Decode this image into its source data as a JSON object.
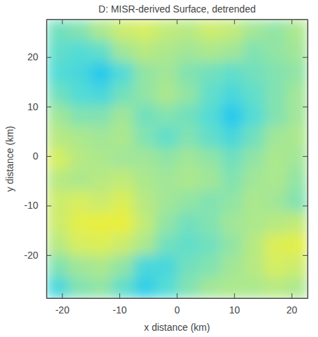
{
  "chart_data": {
    "type": "heatmap",
    "title": "D: MISR-derived Surface, detrended",
    "x_label": "x distance (km)",
    "y_label": "y distance (km)",
    "xlim": [
      -22.7,
      22.8
    ],
    "ylim": [
      -28.7,
      27.6
    ],
    "xticks": [
      -20,
      -10,
      0,
      10,
      20
    ],
    "yticks": [
      -20,
      -10,
      0,
      10,
      20
    ],
    "zlim": [
      -1,
      1
    ],
    "x_edges": [
      -22.7,
      -18.9,
      -15.1,
      -11.3,
      -7.5,
      -3.7,
      0.1,
      3.9,
      7.7,
      11.5,
      15.3,
      19.1,
      22.8
    ],
    "y_edges": [
      27.6,
      23.3,
      19.0,
      14.6,
      10.3,
      6.0,
      1.6,
      -2.7,
      -7.0,
      -11.4,
      -15.7,
      -20.0,
      -24.4,
      -28.7
    ],
    "values": [
      [
        -0.3,
        -0.2,
        0.1,
        0.4,
        0.5,
        0.3,
        0.2,
        0.4,
        0.3,
        0.0,
        -0.1,
        0.1
      ],
      [
        -0.4,
        -0.5,
        -0.4,
        0.0,
        0.2,
        0.1,
        0.0,
        0.1,
        0.0,
        -0.2,
        -0.1,
        0.0
      ],
      [
        -0.5,
        -0.6,
        -0.9,
        -0.5,
        -0.1,
        0.0,
        -0.2,
        -0.3,
        -0.4,
        -0.3,
        -0.2,
        -0.1
      ],
      [
        -0.3,
        -0.5,
        -0.6,
        -0.3,
        -0.1,
        0.1,
        -0.1,
        -0.4,
        -0.6,
        -0.4,
        -0.2,
        0.0
      ],
      [
        0.0,
        -0.2,
        -0.2,
        0.0,
        -0.3,
        -0.2,
        -0.3,
        -0.5,
        -0.9,
        -0.5,
        -0.2,
        0.0
      ],
      [
        0.2,
        0.1,
        0.0,
        0.1,
        -0.2,
        -0.4,
        -0.2,
        -0.4,
        -0.6,
        -0.3,
        0.0,
        0.1
      ],
      [
        0.5,
        0.2,
        0.1,
        0.0,
        0.0,
        -0.1,
        0.0,
        -0.1,
        -0.3,
        -0.1,
        0.1,
        0.0
      ],
      [
        0.2,
        0.1,
        0.2,
        0.3,
        0.1,
        0.0,
        0.1,
        0.0,
        -0.2,
        0.0,
        0.1,
        -0.1
      ],
      [
        0.4,
        0.5,
        0.4,
        0.6,
        0.2,
        0.0,
        -0.1,
        -0.2,
        -0.1,
        0.1,
        0.0,
        -0.2
      ],
      [
        0.4,
        0.7,
        0.8,
        0.8,
        0.3,
        -0.1,
        -0.3,
        -0.2,
        0.0,
        0.1,
        0.2,
        0.3
      ],
      [
        0.2,
        0.5,
        0.6,
        0.4,
        0.1,
        -0.3,
        -0.4,
        -0.3,
        -0.1,
        0.2,
        0.6,
        0.7
      ],
      [
        -0.2,
        0.0,
        0.1,
        -0.1,
        -0.6,
        -0.6,
        -0.3,
        -0.2,
        0.0,
        0.2,
        0.5,
        0.4
      ],
      [
        -0.6,
        -0.2,
        -0.1,
        -0.4,
        -0.8,
        -0.5,
        -0.2,
        0.0,
        0.1,
        0.1,
        0.2,
        0.1
      ]
    ]
  }
}
